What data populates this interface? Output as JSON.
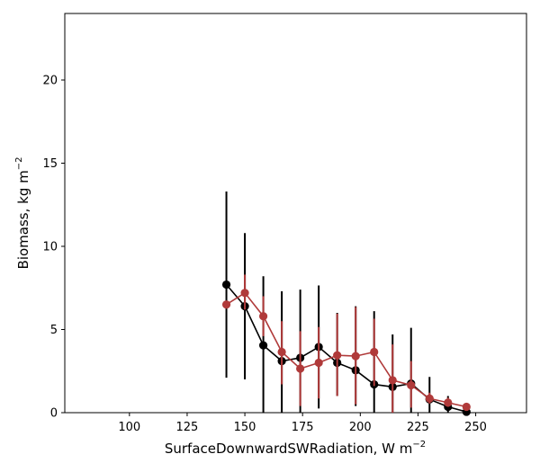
{
  "chart_data": {
    "type": "line",
    "title": "",
    "xlabel": "SurfaceDownwardSWRadiation,  W m",
    "xlabel_sup": "−2",
    "ylabel": "Biomass,  kg m",
    "ylabel_sup": "−2",
    "xlim": [
      72,
      272
    ],
    "ylim": [
      0,
      24
    ],
    "xticks": [
      100,
      125,
      150,
      175,
      200,
      225,
      250
    ],
    "yticks": [
      0,
      5,
      10,
      15,
      20
    ],
    "grid": false,
    "legend": "none",
    "series": [
      {
        "color": "#000000",
        "x": [
          142,
          150,
          158,
          166,
          174,
          182,
          190,
          198,
          206,
          214,
          222,
          230,
          238,
          246
        ],
        "y": [
          7.7,
          6.4,
          4.05,
          3.1,
          3.3,
          3.95,
          3.0,
          2.55,
          1.7,
          1.55,
          1.75,
          0.8,
          0.35,
          0.05
        ],
        "err_low": [
          2.1,
          2.0,
          0.0,
          0.0,
          0.0,
          0.25,
          1.0,
          0.4,
          0.0,
          0.0,
          0.0,
          0.0,
          0.0,
          0.0
        ],
        "err_high": [
          13.3,
          10.8,
          8.2,
          7.3,
          7.4,
          7.65,
          6.0,
          6.4,
          6.1,
          4.7,
          5.1,
          2.15,
          1.0,
          0.15
        ]
      },
      {
        "color": "#b03a3a",
        "x": [
          142,
          150,
          158,
          166,
          174,
          182,
          190,
          198,
          206,
          214,
          222,
          230,
          238,
          246
        ],
        "y": [
          6.5,
          7.2,
          5.8,
          3.65,
          2.65,
          3.0,
          3.45,
          3.4,
          3.65,
          1.95,
          1.65,
          0.85,
          0.6,
          0.35
        ],
        "err_low": [
          6.5,
          6.2,
          4.6,
          1.7,
          0.4,
          0.85,
          1.0,
          0.5,
          1.6,
          0.0,
          0.3,
          0.55,
          0.35,
          0.2
        ],
        "err_high": [
          6.5,
          8.3,
          7.0,
          5.5,
          4.9,
          5.15,
          5.95,
          6.35,
          5.65,
          4.1,
          3.1,
          1.2,
          0.9,
          0.5
        ]
      }
    ]
  }
}
